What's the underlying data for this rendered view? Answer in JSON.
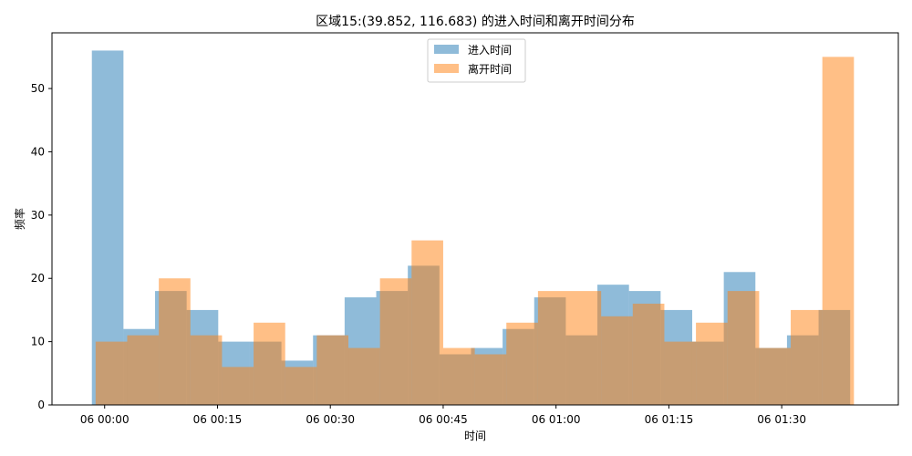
{
  "chart_data": {
    "type": "bar",
    "title": "区域15:(39.852, 116.683) 的进入时间和离开时间分布",
    "xlabel": "时间",
    "ylabel": "频率",
    "x_tick_labels": [
      "06 00:00",
      "06 00:15",
      "06 00:30",
      "06 00:45",
      "06 01:00",
      "06 01:15",
      "06 01:30"
    ],
    "x_tick_minutes": [
      0,
      15,
      30,
      45,
      60,
      75,
      90
    ],
    "y_ticks": [
      0,
      10,
      20,
      30,
      40,
      50
    ],
    "xlim": [
      -7,
      105.5
    ],
    "ylim": [
      0,
      58.8
    ],
    "grid": false,
    "legend_position": "top-center",
    "series": [
      {
        "name": "进入时间",
        "color": "#1f77b4",
        "opacity": 0.5,
        "bin_start": -1.7,
        "bin_width": 4.2,
        "values": [
          56,
          12,
          18,
          15,
          10,
          10,
          7,
          11,
          17,
          18,
          22,
          8,
          9,
          12,
          17,
          11,
          19,
          18,
          15,
          10,
          21,
          9,
          11,
          15
        ]
      },
      {
        "name": "离开时间",
        "color": "#ff7f0e",
        "opacity": 0.5,
        "bin_start": -1.2,
        "bin_width": 4.2,
        "values": [
          10,
          11,
          20,
          11,
          6,
          13,
          6,
          11,
          9,
          20,
          26,
          9,
          8,
          13,
          18,
          18,
          14,
          16,
          10,
          13,
          18,
          9,
          15,
          55
        ]
      }
    ]
  }
}
